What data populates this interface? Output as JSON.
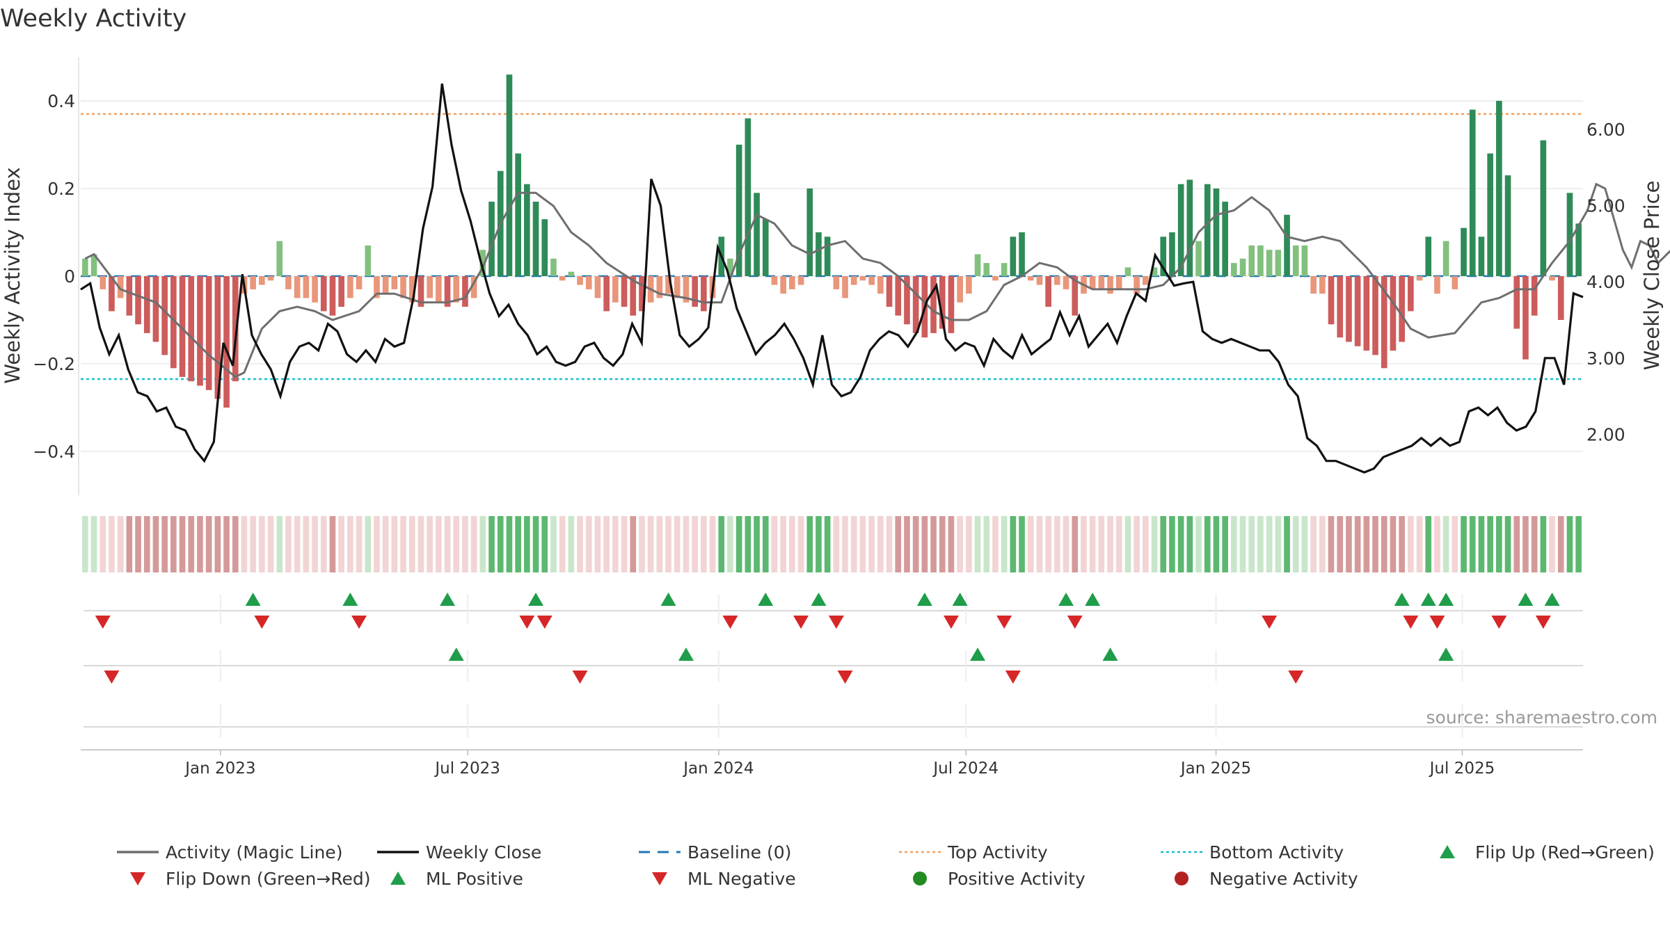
{
  "chart_data": {
    "type": "bar",
    "title": "Weekly Activity",
    "ylabel_left": "Weekly Activity Index",
    "ylabel_right": "Weekly Close Price",
    "source": "source: sharemaestro.com",
    "left_axis": {
      "range": [
        -0.5,
        0.5
      ],
      "ticks": [
        -0.4,
        -0.2,
        0,
        0.2,
        0.4
      ],
      "tick_labels": [
        "−0.4",
        "−0.2",
        "0",
        "0.2",
        "0.4"
      ]
    },
    "right_axis": {
      "range": [
        1.2,
        6.95
      ],
      "ticks": [
        2.0,
        3.0,
        4.0,
        5.0,
        6.0
      ],
      "tick_labels": [
        "2.00",
        "3.00",
        "4.00",
        "5.00",
        "6.00"
      ]
    },
    "x_range_weeks": [
      0,
      158
    ],
    "x_ticks": [
      {
        "label": "Jan 2023",
        "week": 14.7
      },
      {
        "label": "Jul 2023",
        "week": 40.7
      },
      {
        "label": "Jan 2024",
        "week": 67.1
      },
      {
        "label": "Jul 2024",
        "week": 93.1
      },
      {
        "label": "Jan 2025",
        "week": 119.4
      },
      {
        "label": "Jul 2025",
        "week": 145.3
      }
    ],
    "top_activity": 0.37,
    "bottom_activity": -0.235,
    "activity": [
      0.04,
      0.05,
      -0.03,
      -0.08,
      -0.05,
      -0.09,
      -0.11,
      -0.13,
      -0.15,
      -0.18,
      -0.21,
      -0.23,
      -0.24,
      -0.25,
      -0.26,
      -0.28,
      -0.3,
      -0.24,
      -0.04,
      -0.03,
      -0.02,
      -0.01,
      0.08,
      -0.03,
      -0.05,
      -0.05,
      -0.06,
      -0.08,
      -0.09,
      -0.07,
      -0.05,
      -0.03,
      0.07,
      -0.05,
      -0.04,
      -0.03,
      -0.05,
      -0.06,
      -0.07,
      -0.05,
      -0.06,
      -0.07,
      -0.06,
      -0.07,
      -0.05,
      0.06,
      0.17,
      0.24,
      0.46,
      0.28,
      0.21,
      0.17,
      0.13,
      0.04,
      -0.01,
      0.01,
      -0.02,
      -0.03,
      -0.05,
      -0.08,
      -0.06,
      -0.07,
      -0.09,
      -0.08,
      -0.06,
      -0.05,
      -0.04,
      -0.05,
      -0.06,
      -0.07,
      -0.08,
      -0.05,
      0.09,
      0.04,
      0.3,
      0.36,
      0.19,
      0.13,
      -0.02,
      -0.04,
      -0.03,
      -0.02,
      0.2,
      0.1,
      0.09,
      -0.03,
      -0.05,
      -0.02,
      -0.01,
      -0.02,
      -0.04,
      -0.07,
      -0.09,
      -0.11,
      -0.13,
      -0.14,
      -0.13,
      -0.12,
      -0.13,
      -0.06,
      -0.04,
      0.05,
      0.03,
      -0.01,
      0.03,
      0.09,
      0.1,
      -0.01,
      -0.02,
      -0.07,
      -0.02,
      -0.03,
      -0.09,
      -0.04,
      -0.03,
      -0.03,
      -0.04,
      -0.03,
      0.02,
      -0.04,
      -0.02,
      0.02,
      0.09,
      0.1,
      0.21,
      0.22,
      0.08,
      0.21,
      0.2,
      0.17,
      0.03,
      0.04,
      0.07,
      0.07,
      0.06,
      0.06,
      0.14,
      0.07,
      0.07,
      -0.04,
      -0.04,
      -0.11,
      -0.14,
      -0.15,
      -0.16,
      -0.17,
      -0.18,
      -0.21,
      -0.17,
      -0.15,
      -0.08,
      -0.01,
      0.09,
      -0.04,
      0.08,
      -0.03,
      0.11,
      0.38,
      0.09,
      0.28,
      0.4,
      0.23,
      -0.12,
      -0.19,
      -0.09,
      0.31,
      -0.01,
      -0.1,
      0.19,
      0.12
    ],
    "magic_line": [
      [
        0,
        0.04
      ],
      [
        1,
        0.05
      ],
      [
        4,
        -0.03
      ],
      [
        8,
        -0.06
      ],
      [
        11,
        -0.12
      ],
      [
        14,
        -0.18
      ],
      [
        17,
        -0.23
      ],
      [
        18,
        -0.22
      ],
      [
        20,
        -0.12
      ],
      [
        22,
        -0.08
      ],
      [
        24,
        -0.07
      ],
      [
        26,
        -0.08
      ],
      [
        28,
        -0.1
      ],
      [
        31,
        -0.08
      ],
      [
        33,
        -0.04
      ],
      [
        35,
        -0.04
      ],
      [
        38,
        -0.06
      ],
      [
        41,
        -0.06
      ],
      [
        43,
        -0.05
      ],
      [
        45,
        0.02
      ],
      [
        47,
        0.12
      ],
      [
        49,
        0.19
      ],
      [
        51,
        0.19
      ],
      [
        53,
        0.16
      ],
      [
        55,
        0.1
      ],
      [
        57,
        0.07
      ],
      [
        59,
        0.03
      ],
      [
        62,
        -0.01
      ],
      [
        65,
        -0.04
      ],
      [
        68,
        -0.05
      ],
      [
        70,
        -0.06
      ],
      [
        72,
        -0.06
      ],
      [
        74,
        0.05
      ],
      [
        76,
        0.14
      ],
      [
        78,
        0.12
      ],
      [
        80,
        0.07
      ],
      [
        82,
        0.05
      ],
      [
        84,
        0.07
      ],
      [
        86,
        0.08
      ],
      [
        88,
        0.04
      ],
      [
        90,
        0.03
      ],
      [
        92,
        0.0
      ],
      [
        94,
        -0.04
      ],
      [
        96,
        -0.08
      ],
      [
        98,
        -0.1
      ],
      [
        100,
        -0.1
      ],
      [
        102,
        -0.08
      ],
      [
        104,
        -0.02
      ],
      [
        106,
        0.0
      ],
      [
        108,
        0.03
      ],
      [
        110,
        0.02
      ],
      [
        112,
        -0.01
      ],
      [
        114,
        -0.03
      ],
      [
        117,
        -0.03
      ],
      [
        120,
        -0.03
      ],
      [
        122,
        -0.02
      ],
      [
        124,
        0.02
      ],
      [
        126,
        0.1
      ],
      [
        128,
        0.14
      ],
      [
        130,
        0.15
      ],
      [
        132,
        0.18
      ],
      [
        134,
        0.15
      ],
      [
        136,
        0.09
      ],
      [
        138,
        0.08
      ],
      [
        140,
        0.09
      ],
      [
        142,
        0.08
      ],
      [
        145,
        0.02
      ],
      [
        148,
        -0.06
      ],
      [
        150,
        -0.12
      ],
      [
        152,
        -0.14
      ],
      [
        155,
        -0.13
      ],
      [
        158,
        -0.06
      ],
      [
        160,
        -0.05
      ],
      [
        162,
        -0.03
      ],
      [
        164,
        -0.03
      ],
      [
        166,
        0.03
      ],
      [
        168,
        0.08
      ],
      [
        170,
        0.15
      ],
      [
        171,
        0.21
      ],
      [
        172,
        0.2
      ],
      [
        174,
        0.06
      ],
      [
        175,
        0.02
      ],
      [
        176,
        0.08
      ],
      [
        177,
        0.07
      ],
      [
        178,
        0.03
      ],
      [
        180,
        0.07
      ]
    ],
    "weekly_close": [
      [
        0,
        3.9
      ],
      [
        1,
        3.98
      ],
      [
        2,
        3.4
      ],
      [
        3,
        3.05
      ],
      [
        4,
        3.3
      ],
      [
        5,
        2.85
      ],
      [
        6,
        2.55
      ],
      [
        7,
        2.5
      ],
      [
        8,
        2.3
      ],
      [
        9,
        2.35
      ],
      [
        10,
        2.1
      ],
      [
        11,
        2.05
      ],
      [
        12,
        1.8
      ],
      [
        13,
        1.65
      ],
      [
        14,
        1.9
      ],
      [
        15,
        3.2
      ],
      [
        16,
        2.9
      ],
      [
        17,
        4.1
      ],
      [
        18,
        3.3
      ],
      [
        19,
        3.05
      ],
      [
        20,
        2.85
      ],
      [
        21,
        2.5
      ],
      [
        22,
        2.95
      ],
      [
        23,
        3.15
      ],
      [
        24,
        3.2
      ],
      [
        25,
        3.1
      ],
      [
        26,
        3.45
      ],
      [
        27,
        3.35
      ],
      [
        28,
        3.05
      ],
      [
        29,
        2.95
      ],
      [
        30,
        3.1
      ],
      [
        31,
        2.95
      ],
      [
        32,
        3.25
      ],
      [
        33,
        3.15
      ],
      [
        34,
        3.2
      ],
      [
        35,
        3.8
      ],
      [
        36,
        4.7
      ],
      [
        37,
        5.25
      ],
      [
        38,
        6.6
      ],
      [
        39,
        5.8
      ],
      [
        40,
        5.2
      ],
      [
        41,
        4.8
      ],
      [
        42,
        4.3
      ],
      [
        43,
        3.85
      ],
      [
        44,
        3.55
      ],
      [
        45,
        3.7
      ],
      [
        46,
        3.45
      ],
      [
        47,
        3.3
      ],
      [
        48,
        3.05
      ],
      [
        49,
        3.15
      ],
      [
        50,
        2.95
      ],
      [
        51,
        2.9
      ],
      [
        52,
        2.95
      ],
      [
        53,
        3.15
      ],
      [
        54,
        3.2
      ],
      [
        55,
        3.0
      ],
      [
        56,
        2.9
      ],
      [
        57,
        3.05
      ],
      [
        58,
        3.45
      ],
      [
        59,
        3.2
      ],
      [
        60,
        5.35
      ],
      [
        61,
        5.0
      ],
      [
        62,
        4.0
      ],
      [
        63,
        3.3
      ],
      [
        64,
        3.15
      ],
      [
        65,
        3.25
      ],
      [
        66,
        3.4
      ],
      [
        67,
        4.45
      ],
      [
        68,
        4.15
      ],
      [
        69,
        3.65
      ],
      [
        70,
        3.35
      ],
      [
        71,
        3.05
      ],
      [
        72,
        3.2
      ],
      [
        73,
        3.3
      ],
      [
        74,
        3.45
      ],
      [
        75,
        3.25
      ],
      [
        76,
        3.0
      ],
      [
        77,
        2.65
      ],
      [
        78,
        3.3
      ],
      [
        79,
        2.65
      ],
      [
        80,
        2.5
      ],
      [
        81,
        2.55
      ],
      [
        82,
        2.75
      ],
      [
        83,
        3.1
      ],
      [
        84,
        3.25
      ],
      [
        85,
        3.35
      ],
      [
        86,
        3.3
      ],
      [
        87,
        3.15
      ],
      [
        88,
        3.35
      ],
      [
        89,
        3.75
      ],
      [
        90,
        3.95
      ],
      [
        91,
        3.25
      ],
      [
        92,
        3.1
      ],
      [
        93,
        3.2
      ],
      [
        94,
        3.15
      ],
      [
        95,
        2.9
      ],
      [
        96,
        3.25
      ],
      [
        97,
        3.1
      ],
      [
        98,
        3.0
      ],
      [
        99,
        3.3
      ],
      [
        100,
        3.05
      ],
      [
        101,
        3.15
      ],
      [
        102,
        3.25
      ],
      [
        103,
        3.6
      ],
      [
        104,
        3.3
      ],
      [
        105,
        3.55
      ],
      [
        106,
        3.15
      ],
      [
        107,
        3.3
      ],
      [
        108,
        3.45
      ],
      [
        109,
        3.2
      ],
      [
        110,
        3.55
      ],
      [
        111,
        3.85
      ],
      [
        112,
        3.75
      ],
      [
        113,
        4.35
      ],
      [
        114,
        4.15
      ],
      [
        115,
        3.95
      ],
      [
        116,
        3.98
      ],
      [
        117,
        4.0
      ],
      [
        118,
        3.35
      ],
      [
        119,
        3.25
      ],
      [
        120,
        3.2
      ],
      [
        121,
        3.25
      ],
      [
        122,
        3.2
      ],
      [
        123,
        3.15
      ],
      [
        124,
        3.1
      ],
      [
        125,
        3.1
      ],
      [
        126,
        2.95
      ],
      [
        127,
        2.65
      ],
      [
        128,
        2.5
      ],
      [
        129,
        1.95
      ],
      [
        130,
        1.85
      ],
      [
        131,
        1.65
      ],
      [
        132,
        1.65
      ],
      [
        133,
        1.6
      ],
      [
        134,
        1.55
      ],
      [
        135,
        1.5
      ],
      [
        136,
        1.55
      ],
      [
        137,
        1.7
      ],
      [
        138,
        1.75
      ],
      [
        139,
        1.8
      ],
      [
        140,
        1.85
      ],
      [
        141,
        1.95
      ],
      [
        142,
        1.85
      ],
      [
        143,
        1.95
      ],
      [
        144,
        1.85
      ],
      [
        145,
        1.9
      ],
      [
        146,
        2.3
      ],
      [
        147,
        2.35
      ],
      [
        148,
        2.25
      ],
      [
        149,
        2.35
      ],
      [
        150,
        2.15
      ],
      [
        151,
        2.05
      ],
      [
        152,
        2.1
      ],
      [
        153,
        2.3
      ],
      [
        154,
        3.0
      ],
      [
        155,
        3.0
      ],
      [
        156,
        2.65
      ],
      [
        157,
        3.85
      ],
      [
        158,
        3.8
      ]
    ],
    "flip_up_weeks": [
      18,
      28,
      38,
      48,
      62,
      72,
      78,
      89,
      93,
      104,
      107,
      139,
      142,
      144,
      152,
      155
    ],
    "flip_down_weeks": [
      2,
      19,
      29,
      47,
      49,
      68,
      76,
      79,
      92,
      97,
      105,
      125,
      140,
      143,
      150,
      154
    ],
    "ml_positive_weeks": [
      39,
      64,
      94,
      108,
      144
    ],
    "ml_negative_weeks": [
      3,
      52,
      80,
      98,
      128
    ],
    "legend": [
      {
        "label": "Activity (Magic Line)",
        "kind": "line",
        "color": "#6e6e6e"
      },
      {
        "label": "Weekly Close",
        "kind": "line",
        "color": "#111111"
      },
      {
        "label": "Baseline (0)",
        "kind": "dashed",
        "color": "#1f77b4"
      },
      {
        "label": "Top Activity",
        "kind": "dotted",
        "color": "#f0a060"
      },
      {
        "label": "Bottom Activity",
        "kind": "dotted",
        "color": "#17becf"
      },
      {
        "label": "Flip Up (Red→Green)",
        "kind": "triangle-up",
        "color": "#1f9d4a"
      },
      {
        "label": "Flip Down (Green→Red)",
        "kind": "triangle-down",
        "color": "#d62728"
      },
      {
        "label": "ML Positive",
        "kind": "triangle-up",
        "color": "#1f9d4a"
      },
      {
        "label": "ML Negative",
        "kind": "triangle-down",
        "color": "#d62728"
      },
      {
        "label": "Positive Activity",
        "kind": "circle",
        "color": "#228b22"
      },
      {
        "label": "Negative Activity",
        "kind": "circle",
        "color": "#b22222"
      }
    ],
    "colors": {
      "strong_green": "#2e8b57",
      "light_green": "#82c07e",
      "strong_red": "#cd5c5c",
      "light_red": "#e9967a",
      "strip_strong_green": "#5cb870",
      "strip_light_green": "#c9e6cb",
      "strip_strong_red": "#d49a9a",
      "strip_light_red": "#f2d4d4",
      "grid": "#e8e8e8",
      "axis": "#cccccc",
      "text": "#333333"
    }
  }
}
